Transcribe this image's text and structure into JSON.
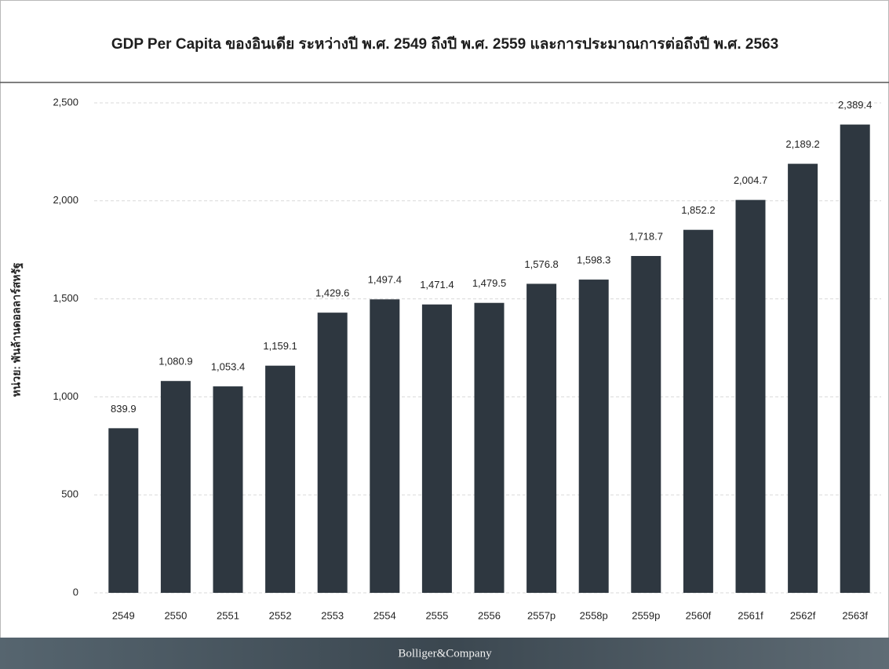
{
  "chart_data": {
    "type": "bar",
    "title": "GDP Per Capita ของอินเดีย ระหว่างปี พ.ศ. 2549 ถึงปี พ.ศ. 2559 และการประมาณการต่อถึงปี พ.ศ. 2563",
    "y_label": "หน่วย: พันล้านดอลลาร์สหรัฐ",
    "categories": [
      "2549",
      "2550",
      "2551",
      "2552",
      "2553",
      "2554",
      "2555",
      "2556",
      "2557p",
      "2558p",
      "2559p",
      "2560f",
      "2561f",
      "2562f",
      "2563f"
    ],
    "values": [
      839.9,
      1080.9,
      1053.4,
      1159.1,
      1429.6,
      1497.4,
      1471.4,
      1479.5,
      1576.8,
      1598.3,
      1718.7,
      1852.2,
      2004.7,
      2189.2,
      2389.4
    ],
    "value_labels": [
      "839.9",
      "1,080.9",
      "1,053.4",
      "1,159.1",
      "1,429.6",
      "1,497.4",
      "1,471.4",
      "1,479.5",
      "1,576.8",
      "1,598.3",
      "1,718.7",
      "1,852.2",
      "2,004.7",
      "2,189.2",
      "2,389.4"
    ],
    "color": "#2e3740",
    "ylim": [
      0,
      2500
    ],
    "yticks": [
      0,
      500,
      {
        "value": 1000,
        "label": "1,000"
      },
      {
        "value": 1500,
        "label": "1,500"
      },
      {
        "value": 2000,
        "label": "2,000"
      },
      {
        "value": 2500,
        "label": "2,500"
      }
    ],
    "grid": true
  },
  "footer": "Bolliger&Company"
}
